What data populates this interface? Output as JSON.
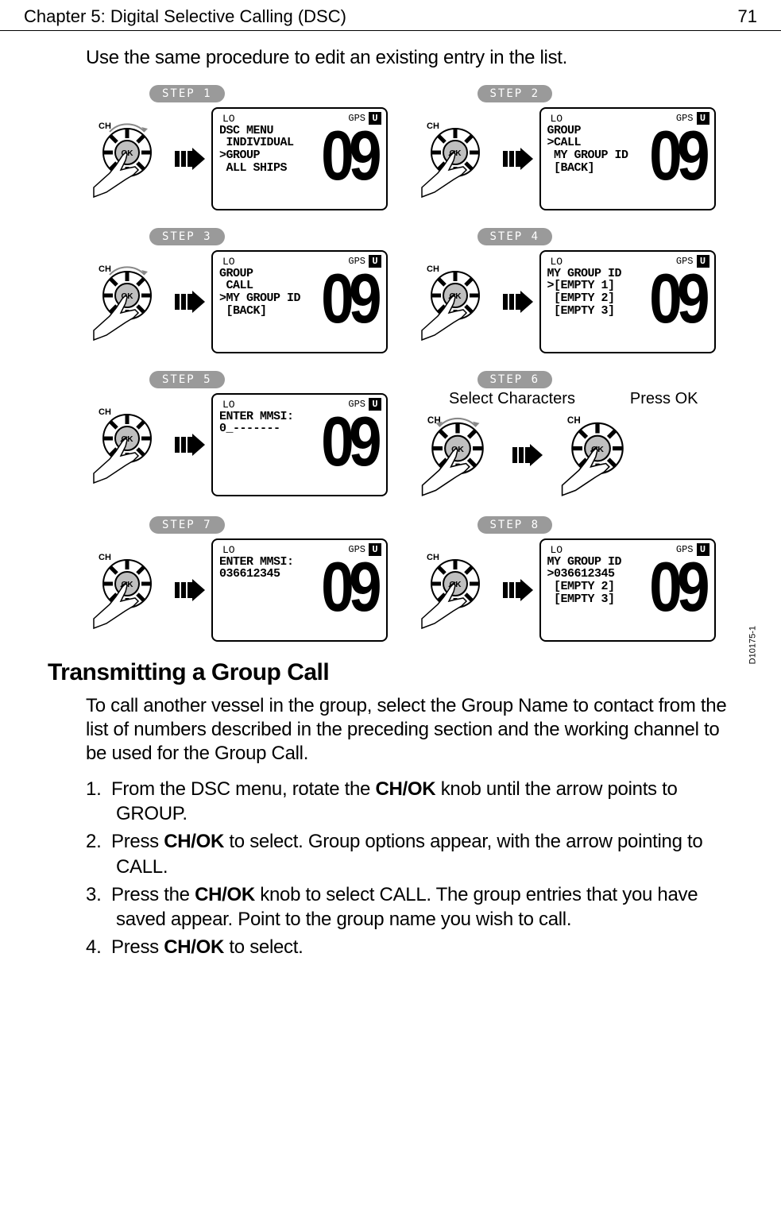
{
  "header": {
    "title": "Chapter 5: Digital Selective Calling (DSC)",
    "page": "71"
  },
  "intro": "Use the same procedure to edit an existing entry in the list.",
  "lcd_common": {
    "lo": "LO",
    "gps": "GPS",
    "u": "U",
    "channel": "09"
  },
  "steps": [
    {
      "pill": "STEP 1",
      "action": "rotate",
      "lines": [
        "DSC MENU",
        " INDIVIDUAL",
        ">GROUP",
        " ALL SHIPS"
      ]
    },
    {
      "pill": "STEP 2",
      "action": "press",
      "lines": [
        "GROUP",
        ">CALL",
        " MY GROUP ID",
        " [BACK]"
      ]
    },
    {
      "pill": "STEP 3",
      "action": "rotate",
      "lines": [
        "GROUP",
        " CALL",
        ">MY GROUP ID",
        " [BACK]"
      ]
    },
    {
      "pill": "STEP 4",
      "action": "press",
      "lines": [
        "MY GROUP ID",
        ">[EMPTY 1]",
        " [EMPTY 2]",
        " [EMPTY 3]"
      ]
    },
    {
      "pill": "STEP 5",
      "action": "press",
      "lines": [
        "ENTER MMSI:",
        "0_-------",
        "",
        ""
      ]
    },
    {
      "pill": "STEP 6",
      "special": "selectpress",
      "label_left": "Select Characters",
      "label_right": "Press OK"
    },
    {
      "pill": "STEP 7",
      "action": "press",
      "lines": [
        "ENTER MMSI:",
        "036612345",
        "",
        ""
      ]
    },
    {
      "pill": "STEP 8",
      "action": "press",
      "lines": [
        "MY GROUP ID",
        ">036612345",
        " [EMPTY 2]",
        " [EMPTY 3]"
      ]
    }
  ],
  "doc_id": "D10175-1",
  "section_title": "Transmitting a Group Call",
  "section_para": "To call another vessel in the group, select the Group Name to contact from the list of numbers described in the preceding section and the working channel to be used for the Group Call.",
  "procedure": [
    {
      "pre": "From the DSC menu, rotate the ",
      "bold": "CH/OK",
      "post": " knob until the arrow points to GROUP."
    },
    {
      "pre": "Press ",
      "bold": "CH/OK",
      "post": " to select. Group options appear, with the arrow pointing to CALL."
    },
    {
      "pre": "Press the ",
      "bold": "CH/OK",
      "post": " knob to select CALL. The group entries that you have saved appear. Point to the group name you wish to call."
    },
    {
      "pre": "Press ",
      "bold": "CH/OK",
      "post": " to select."
    }
  ],
  "knob": {
    "ch_label": "CH",
    "ok_label": "OK"
  }
}
